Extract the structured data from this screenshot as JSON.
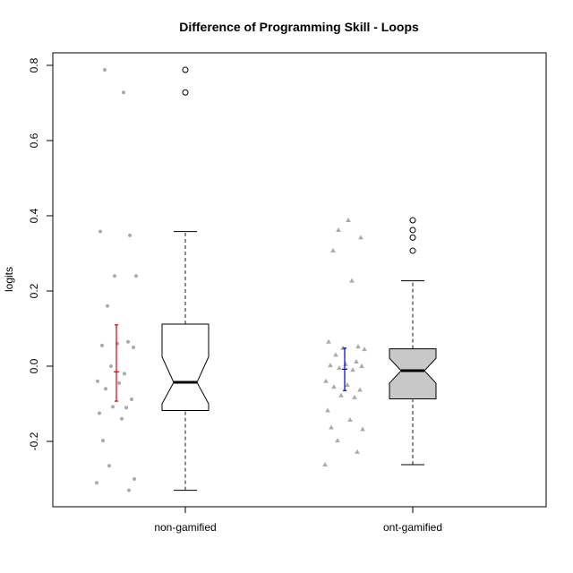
{
  "chart_data": {
    "type": "boxplot",
    "title": "Difference of Programming Skill - Loops",
    "xlabel": "",
    "ylabel": "logits",
    "ylim": [
      -0.37,
      0.83
    ],
    "yticks": [
      "-0.2",
      "0.0",
      "0.2",
      "0.4",
      "0.6",
      "0.8"
    ],
    "ytick_values": [
      -0.2,
      0.0,
      0.2,
      0.4,
      0.6,
      0.8
    ],
    "grid": false,
    "categories": [
      "non-gamified",
      "ont-gamified"
    ],
    "groups": [
      {
        "name": "non-gamified",
        "box_color": "#ffffff",
        "point_color": "#aaaaaa",
        "point_shape": "circle",
        "errorbar_color": "#e00000",
        "stats": {
          "whisker_low": -0.33,
          "q1": -0.118,
          "median": -0.043,
          "q3": 0.112,
          "whisker_high": 0.358,
          "notch_low": -0.1,
          "notch_high": 0.025
        },
        "outliers": [
          0.728,
          0.788
        ],
        "errorbar": {
          "mean": -0.015,
          "low": -0.093,
          "high": 0.11
        },
        "points": [
          -0.31,
          -0.33,
          -0.265,
          -0.3,
          -0.198,
          -0.14,
          -0.125,
          -0.11,
          -0.108,
          -0.088,
          -0.06,
          -0.045,
          -0.04,
          -0.02,
          0.0,
          0.05,
          0.055,
          0.06,
          0.065,
          0.16,
          0.24,
          0.24,
          0.348,
          0.358,
          0.728,
          0.788
        ]
      },
      {
        "name": "ont-gamified",
        "box_color": "#c8c8c8",
        "point_color": "#aaaaaa",
        "point_shape": "triangle",
        "errorbar_color": "#0000d0",
        "stats": {
          "whisker_low": -0.262,
          "q1": -0.087,
          "median": -0.012,
          "q3": 0.046,
          "whisker_high": 0.227,
          "notch_low": -0.045,
          "notch_high": 0.021
        },
        "outliers": [
          0.307,
          0.342,
          0.362,
          0.388
        ],
        "errorbar": {
          "mean": -0.008,
          "low": -0.065,
          "high": 0.048
        },
        "points": [
          -0.262,
          -0.228,
          -0.198,
          -0.168,
          -0.163,
          -0.143,
          -0.118,
          -0.083,
          -0.078,
          -0.063,
          -0.055,
          -0.05,
          -0.04,
          -0.01,
          -0.005,
          0.0,
          0.002,
          0.005,
          0.012,
          0.03,
          0.045,
          0.048,
          0.052,
          0.065,
          0.227,
          0.307,
          0.342,
          0.362,
          0.388
        ]
      }
    ]
  }
}
